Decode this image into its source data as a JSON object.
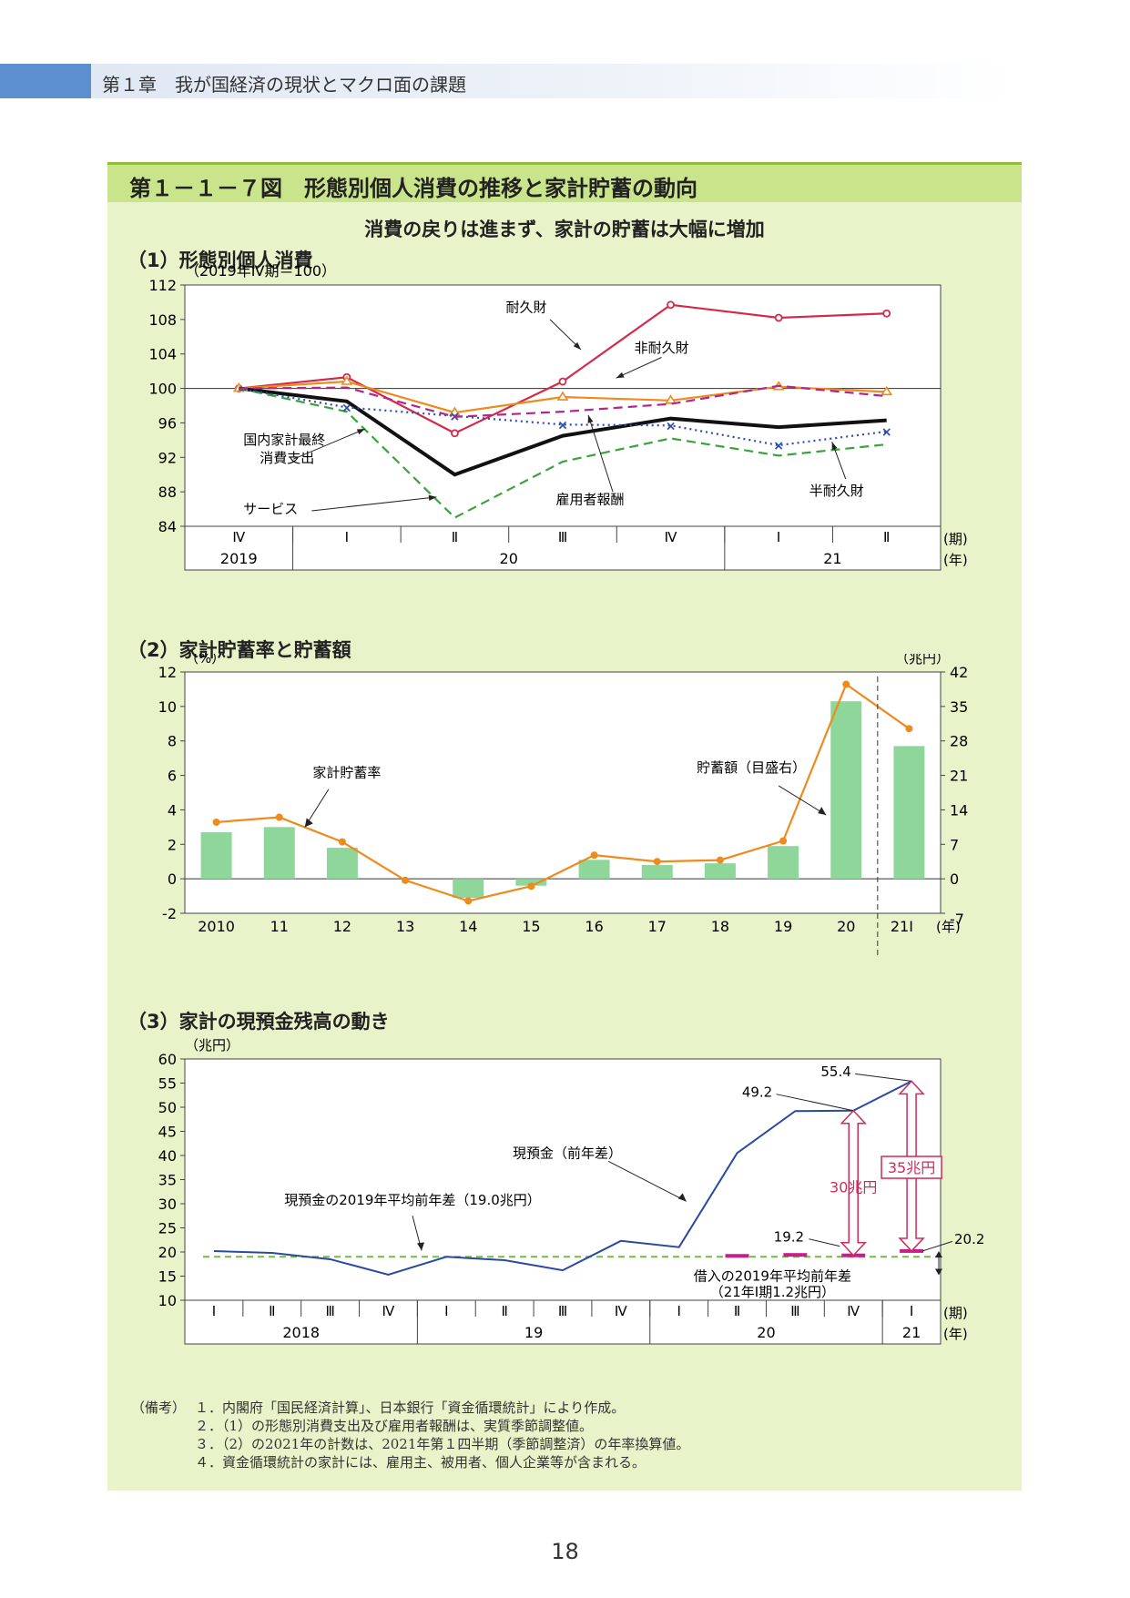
{
  "chapter": {
    "title": "第１章　我が国経済の現状とマクロ面の課題"
  },
  "figure": {
    "title": "第１－１－７図　形態別個人消費の推移と家計貯蓄の動向",
    "subtitle": "消費の戻りは進まず、家計の貯蓄は大幅に増加"
  },
  "chart_data": [
    {
      "type": "line",
      "title": "（1）形態別個人消費",
      "y_unit_label": "（2019年Ⅳ期＝100）",
      "ylim": [
        84,
        112
      ],
      "yticks": [
        84,
        88,
        92,
        96,
        100,
        104,
        108,
        112
      ],
      "x": [
        "Ⅳ",
        "Ⅰ",
        "Ⅱ",
        "Ⅲ",
        "Ⅳ",
        "Ⅰ",
        "Ⅱ"
      ],
      "x_unit_label": "(期)",
      "year_groups": [
        {
          "label": "2019",
          "span": 1
        },
        {
          "label": "20",
          "span": 4
        },
        {
          "label": "21",
          "span": 2
        }
      ],
      "year_unit_label": "(年)",
      "series": [
        {
          "name": "耐久財",
          "color": "#d42a4a",
          "style": "solid",
          "marker": "circle",
          "values": [
            100,
            101.3,
            94.8,
            100.8,
            109.7,
            108.2,
            108.7
          ]
        },
        {
          "name": "非耐久財",
          "color": "#ee8a1e",
          "style": "solid",
          "marker": "triangle",
          "values": [
            100,
            100.8,
            97.2,
            99.0,
            98.6,
            100.2,
            99.6
          ]
        },
        {
          "name": "国内家計最終消費支出",
          "color": "#111111",
          "style": "solid",
          "marker": "none",
          "values": [
            100,
            98.5,
            90.0,
            94.5,
            96.5,
            95.5,
            96.3
          ]
        },
        {
          "name": "サービス",
          "color": "#3aa33a",
          "style": "dashed",
          "marker": "none",
          "values": [
            100,
            97.3,
            85.0,
            91.5,
            94.2,
            92.2,
            93.5
          ]
        },
        {
          "name": "半耐久財",
          "color": "#2b4bb0",
          "style": "dotted",
          "marker": "cross",
          "values": [
            100,
            97.8,
            96.8,
            95.8,
            95.7,
            93.4,
            95.0
          ]
        },
        {
          "name": "雇用者報酬",
          "color": "#b0268a",
          "style": "dashed",
          "marker": "none",
          "values": [
            100,
            100.1,
            96.7,
            97.3,
            98.2,
            100.3,
            99.1
          ]
        }
      ],
      "annotations": [
        "耐久財",
        "非耐久財",
        "国内家計最終消費支出",
        "サービス",
        "雇用者報酬",
        "半耐久財"
      ]
    },
    {
      "type": "bar+line",
      "title": "（2）家計貯蓄率と貯蓄額",
      "y_unit_label": "（%）",
      "y2_unit_label": "（兆円）",
      "ylim": [
        -2,
        12
      ],
      "yticks": [
        -2,
        0,
        2,
        4,
        6,
        8,
        10,
        12
      ],
      "y2lim": [
        -7,
        42
      ],
      "y2ticks": [
        -7,
        0,
        7,
        14,
        21,
        28,
        35,
        42
      ],
      "categories": [
        "2010",
        "11",
        "12",
        "13",
        "14",
        "15",
        "16",
        "17",
        "18",
        "19",
        "20",
        "21Ⅰ"
      ],
      "x_unit_label": "(年)",
      "series": [
        {
          "name": "家計貯蓄率",
          "kind": "bar",
          "axis": "left",
          "color": "#8fd69a",
          "values": [
            2.7,
            3.0,
            1.8,
            0.0,
            -1.1,
            -0.4,
            1.1,
            0.8,
            0.9,
            1.9,
            10.3,
            7.7
          ]
        },
        {
          "name": "貯蓄額（目盛右）",
          "kind": "line",
          "axis": "right",
          "color": "#ee8a1e",
          "values": [
            11.5,
            12.5,
            7.5,
            -0.3,
            -4.5,
            -1.5,
            4.8,
            3.5,
            3.8,
            7.7,
            39.5,
            30.5
          ]
        }
      ],
      "annotations": [
        "家計貯蓄率",
        "貯蓄額（目盛右）"
      ]
    },
    {
      "type": "line",
      "title": "（3）家計の現預金残高の動き",
      "y_unit_label": "（兆円）",
      "ylim": [
        10,
        60
      ],
      "yticks": [
        10,
        15,
        20,
        25,
        30,
        35,
        40,
        45,
        50,
        55,
        60
      ],
      "x": [
        "Ⅰ",
        "Ⅱ",
        "Ⅲ",
        "Ⅳ",
        "Ⅰ",
        "Ⅱ",
        "Ⅲ",
        "Ⅳ",
        "Ⅰ",
        "Ⅱ",
        "Ⅲ",
        "Ⅳ",
        "Ⅰ"
      ],
      "x_unit_label": "(期)",
      "year_groups": [
        {
          "label": "2018",
          "span": 4
        },
        {
          "label": "19",
          "span": 4
        },
        {
          "label": "20",
          "span": 4
        },
        {
          "label": "21",
          "span": 1
        }
      ],
      "year_unit_label": "(年)",
      "series": [
        {
          "name": "現預金（前年差）",
          "color": "#2a4aa0",
          "values": [
            20.2,
            19.8,
            18.5,
            15.3,
            19.0,
            18.3,
            16.2,
            22.3,
            21.0,
            40.5,
            49.2,
            49.3,
            55.4
          ]
        },
        {
          "name": "借入の2019年平均前年差",
          "color": "#c81e8c",
          "values": [
            null,
            null,
            null,
            null,
            null,
            null,
            null,
            null,
            null,
            19.2,
            19.4,
            19.3,
            20.2
          ]
        }
      ],
      "reference_line": {
        "label": "現預金の2019年平均前年差（19.0兆円）",
        "value": 19.0,
        "color": "#6fbf3a"
      },
      "point_labels": [
        "55.4",
        "49.2",
        "19.2",
        "20.2"
      ],
      "difference_labels": [
        "30兆円",
        "35兆円"
      ],
      "annotations": [
        "現預金（前年差）",
        "現預金の2019年平均前年差（19.0兆円）",
        "借入の2019年平均前年差",
        "（21年Ⅰ期1.2兆円）"
      ]
    }
  ],
  "notes": [
    {
      "label": "（備考）",
      "text": "１．内閣府「国民経済計算」、日本銀行「資金循環統計」により作成。"
    },
    {
      "label": "",
      "text": "２．（1）の形態別消費支出及び雇用者報酬は、実質季節調整値。"
    },
    {
      "label": "",
      "text": "３．（2）の2021年の計数は、2021年第１四半期（季節調整済）の年率換算値。"
    },
    {
      "label": "",
      "text": "４．資金循環統計の家計には、雇用主、被用者、個人企業等が含まれる。"
    }
  ],
  "page_number": "18"
}
